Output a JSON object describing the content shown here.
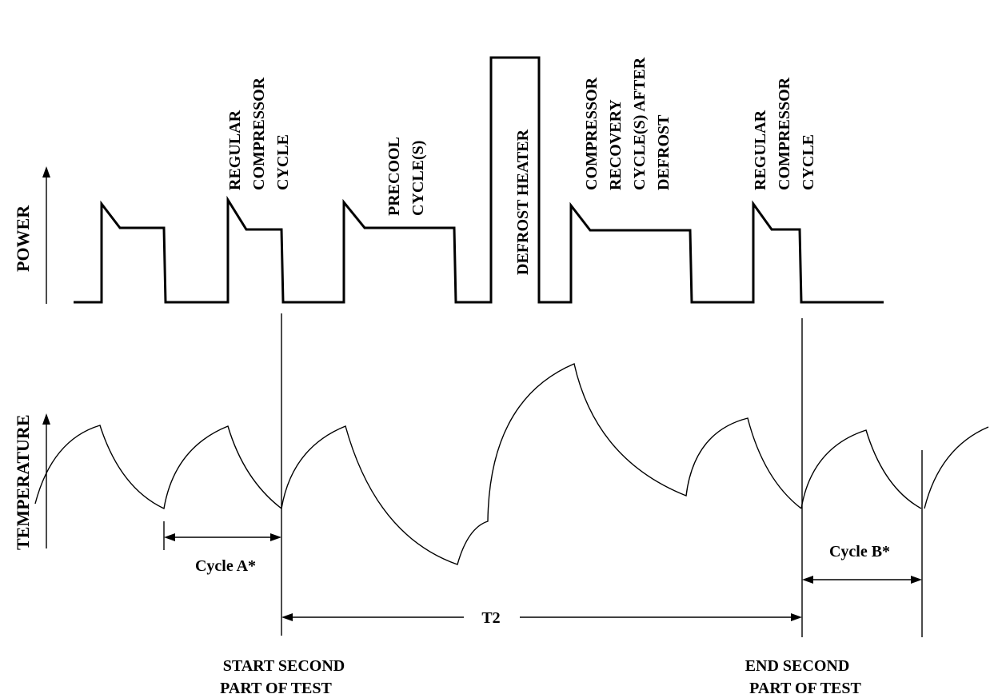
{
  "axes": {
    "power": "POWER",
    "temperature": "TEMPERATURE"
  },
  "labels": {
    "regular_compressor_cycle_1": [
      "REGULAR",
      "COMPRESSOR",
      "CYCLE"
    ],
    "precool_cycles": [
      "PRECOOL",
      "CYCLE(S)"
    ],
    "defrost_heater": "DEFROST HEATER",
    "compressor_recovery": [
      "COMPRESSOR",
      "RECOVERY",
      "CYCLE(S) AFTER",
      "DEFROST"
    ],
    "regular_compressor_cycle_2": [
      "REGULAR",
      "COMPRESSOR",
      "CYCLE"
    ]
  },
  "intervals": {
    "cycle_a": "Cycle A*",
    "cycle_b": "Cycle B*",
    "t2": "T2"
  },
  "markers": {
    "start": [
      "START SECOND",
      "PART OF TEST"
    ],
    "end": [
      "END SECOND",
      "PART OF TEST"
    ]
  }
}
